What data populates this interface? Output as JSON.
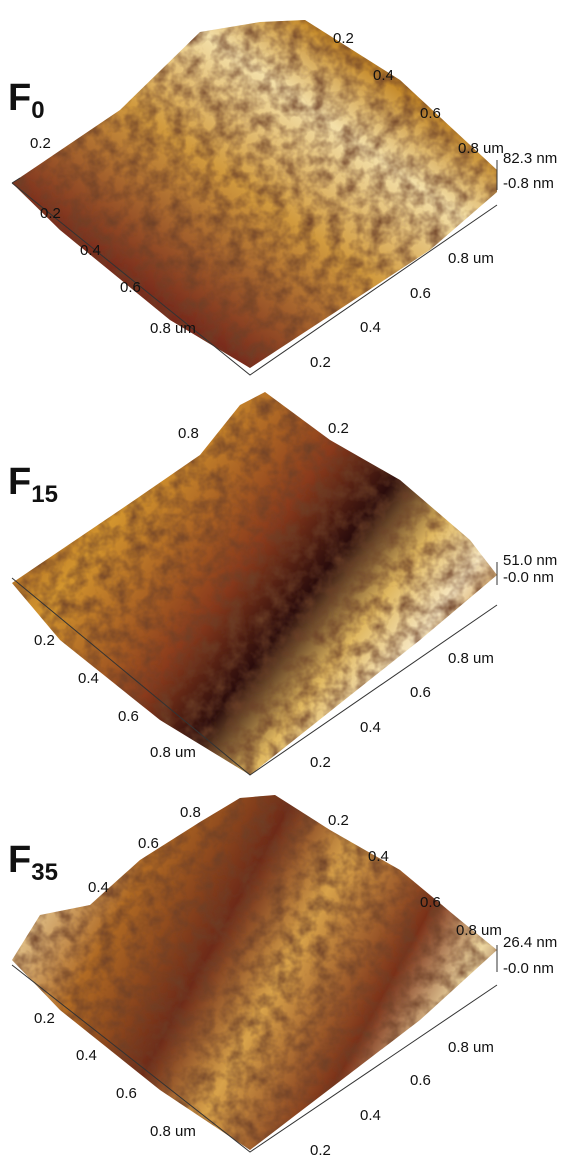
{
  "panels": [
    {
      "label": "F",
      "subscript": "0",
      "back_left_axis": [
        "0.2"
      ],
      "back_right_axis": [
        "0.2",
        "0.4",
        "0.6",
        "0.8 um"
      ],
      "front_left_axis": [
        "0.2",
        "0.4",
        "0.6",
        "0.8 um"
      ],
      "front_right_axis": [
        "0.8 um",
        "0.6",
        "0.4",
        "0.2"
      ],
      "z_max": "82.3 nm",
      "z_min": "-0.8 nm"
    },
    {
      "label": "F",
      "subscript": "15",
      "back_left_axis": [
        "0.8"
      ],
      "back_right_axis": [
        "0.2"
      ],
      "front_left_axis": [
        "0.2",
        "0.4",
        "0.6",
        "0.8 um"
      ],
      "front_right_axis": [
        "0.8 um",
        "0.6",
        "0.4",
        "0.2"
      ],
      "z_max": "51.0 nm",
      "z_min": "-0.0 nm"
    },
    {
      "label": "F",
      "subscript": "35",
      "back_left_axis": [
        "0.8",
        "0.6",
        "0.4"
      ],
      "back_right_axis": [
        "0.2",
        "0.4",
        "0.6",
        "0.8 um"
      ],
      "front_left_axis": [
        "0.2",
        "0.4",
        "0.6",
        "0.8 um"
      ],
      "front_right_axis": [
        "0.8 um",
        "0.6",
        "0.4",
        "0.2"
      ],
      "z_max": "26.4 nm",
      "z_min": "-0.0 nm"
    }
  ]
}
